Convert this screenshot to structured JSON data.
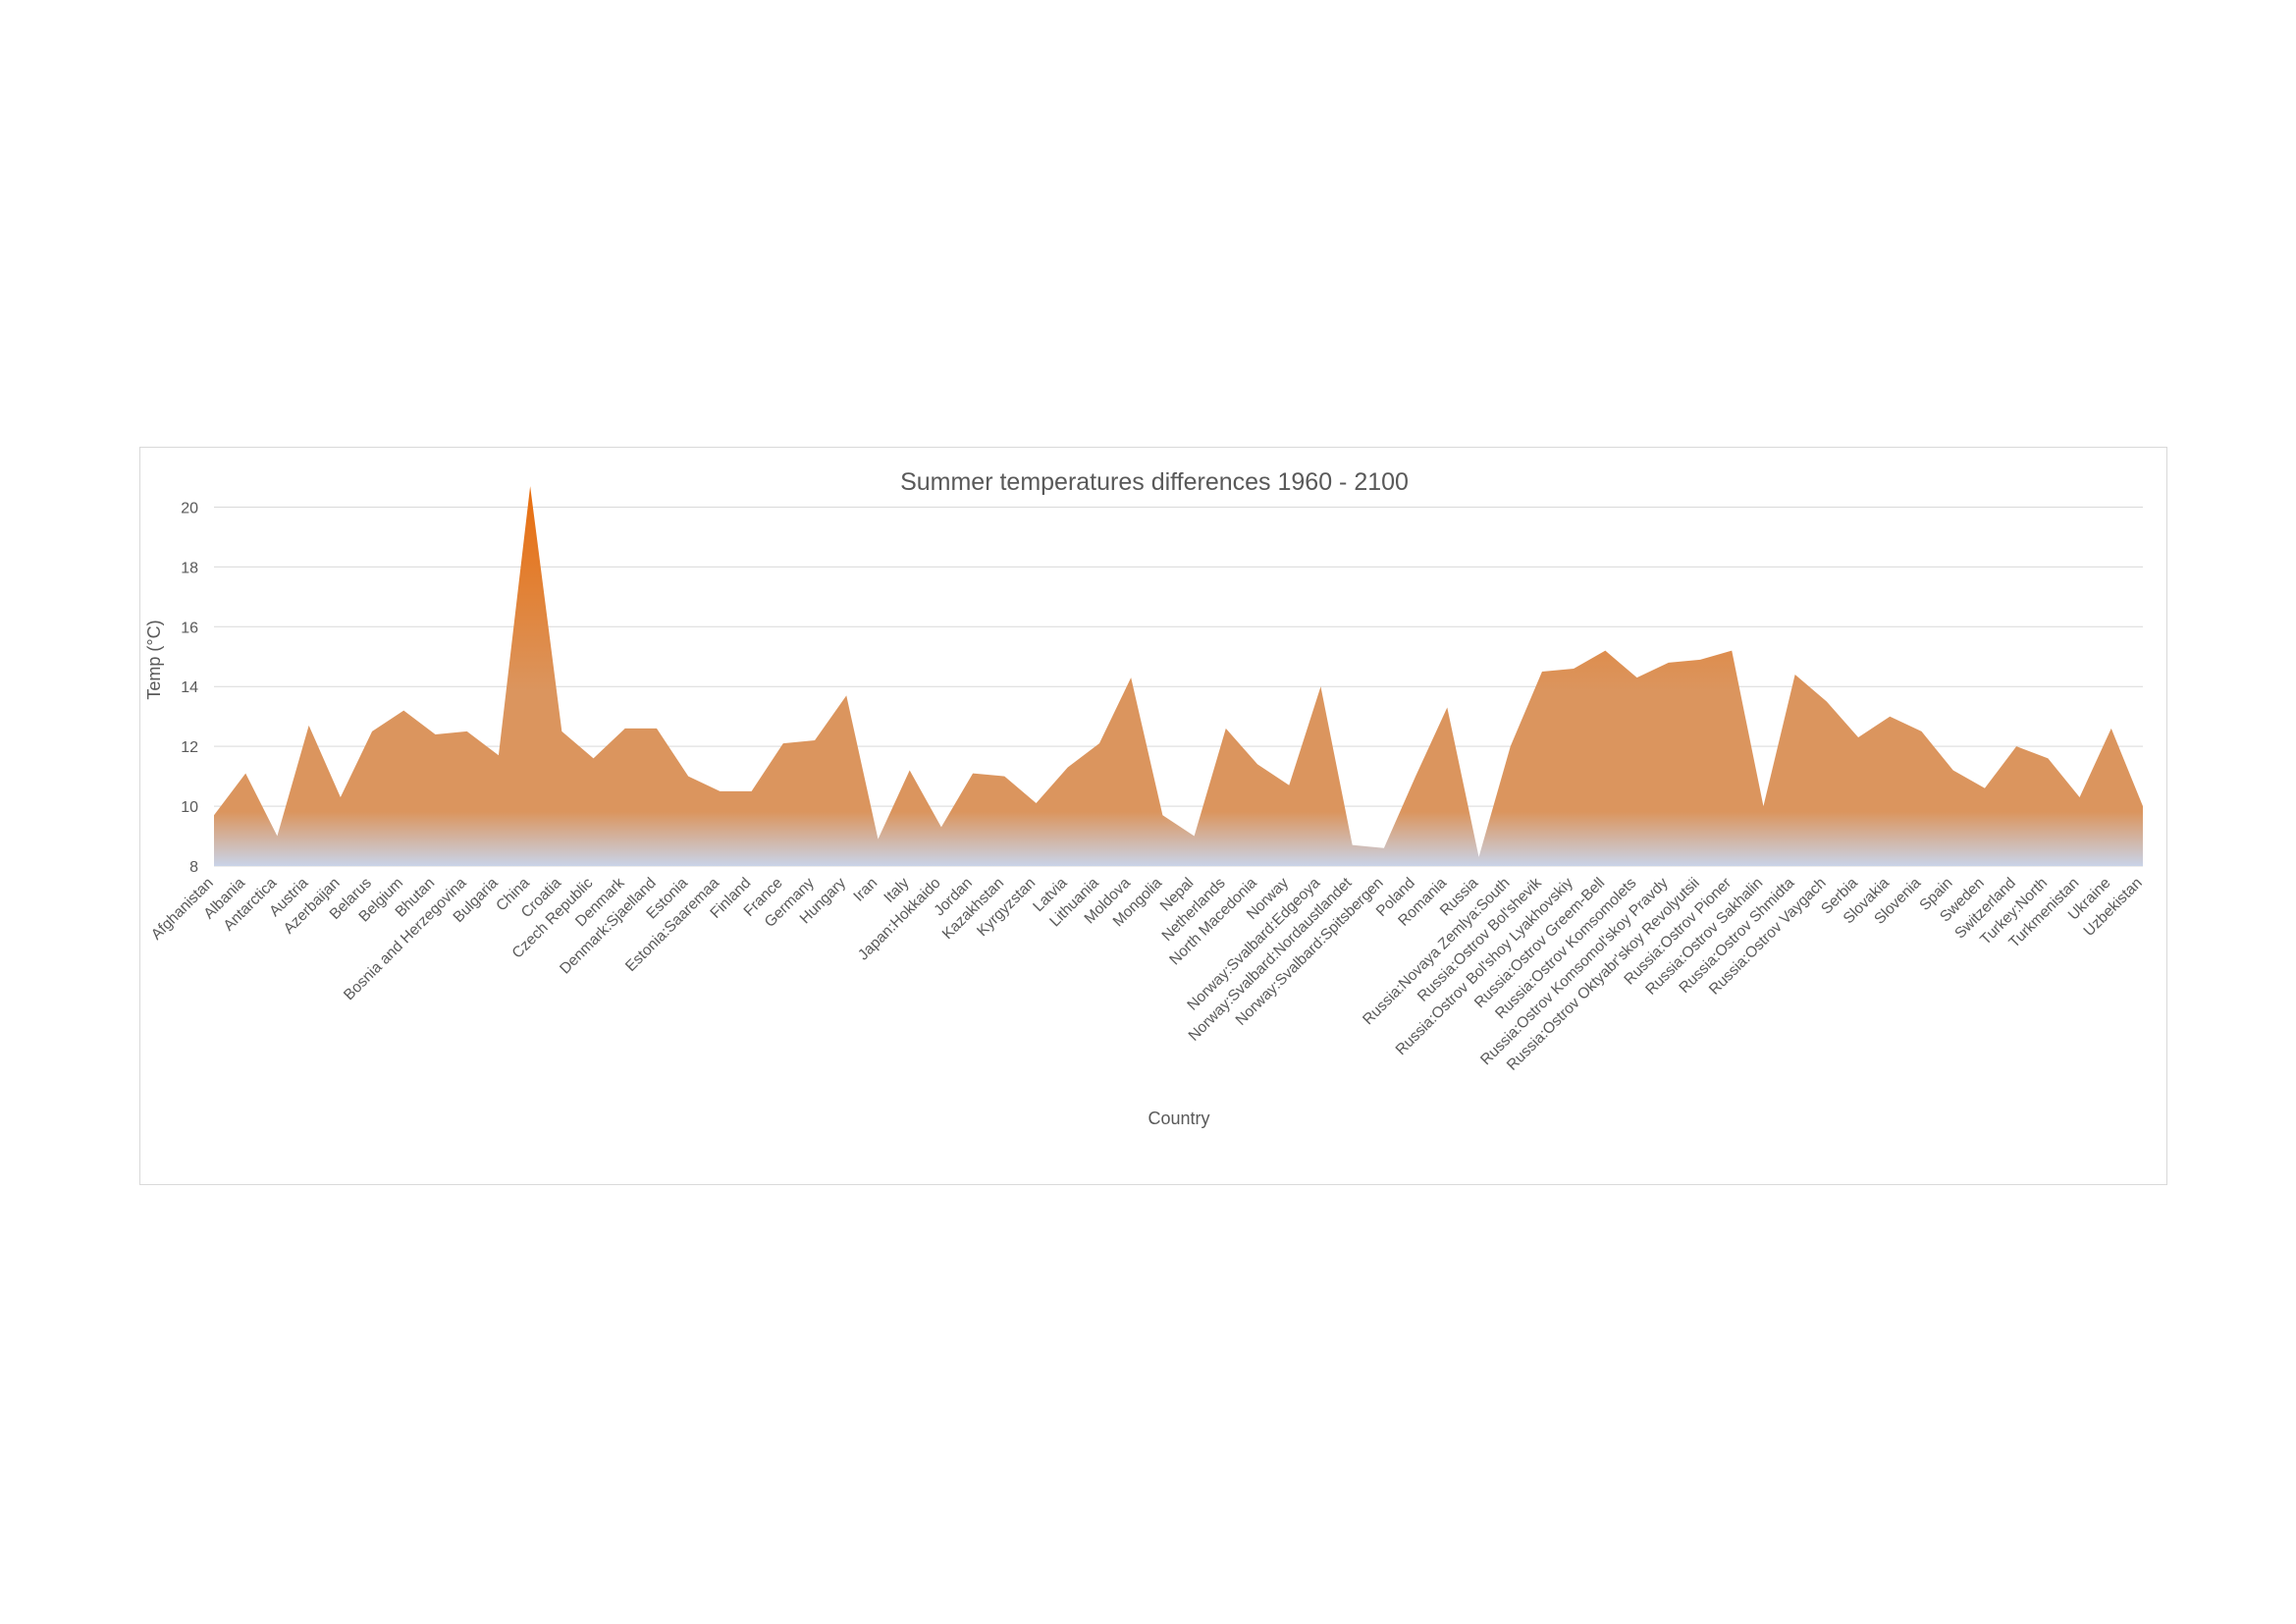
{
  "chart_data": {
    "type": "area",
    "title": "Summer temperatures differences 1960 - 2100",
    "xlabel": "Country",
    "ylabel": "Temp (°C)",
    "ylim": [
      8,
      21
    ],
    "yticks": [
      8,
      10,
      12,
      14,
      16,
      18,
      20
    ],
    "grid": true,
    "legend": "none",
    "colors": {
      "fill_top": "#e96c0a",
      "fill_mid": "#db955e",
      "fill_bottom": "#c9d3e8",
      "grid": "#d9d9d9",
      "text": "#595959"
    },
    "categories": [
      "Afghanistan",
      "Albania",
      "Antarctica",
      "Austria",
      "Azerbaijan",
      "Belarus",
      "Belgium",
      "Bhutan",
      "Bosnia and Herzegovina",
      "Bulgaria",
      "China",
      "Croatia",
      "Czech Republic",
      "Denmark",
      "Denmark:Sjaelland",
      "Estonia",
      "Estonia:Saaremaa",
      "Finland",
      "France",
      "Germany",
      "Hungary",
      "Iran",
      "Italy",
      "Japan:Hokkaido",
      "Jordan",
      "Kazakhstan",
      "Kyrgyzstan",
      "Latvia",
      "Lithuania",
      "Moldova",
      "Mongolia",
      "Nepal",
      "Netherlands",
      "North Macedonia",
      "Norway",
      "Norway:Svalbard:Edgeoya",
      "Norway:Svalbard:Nordaustlandet",
      "Norway:Svalbard:Spitsbergen",
      "Poland",
      "Romania",
      "Russia",
      "Russia:Novaya Zemlya:South",
      "Russia:Ostrov Bol'shevik",
      "Russia:Ostrov Bol'shoy Lyakhovskiy",
      "Russia:Ostrov Greem-Bell",
      "Russia:Ostrov Komsomolets",
      "Russia:Ostrov Komsomol'skoy Pravdy",
      "Russia:Ostrov Oktyabr'skoy Revolyutsii",
      "Russia:Ostrov Pioner",
      "Russia:Ostrov Sakhalin",
      "Russia:Ostrov Shmidta",
      "Russia:Ostrov Vaygach",
      "Serbia",
      "Slovakia",
      "Slovenia",
      "Spain",
      "Sweden",
      "Switzerland",
      "Turkey:North",
      "Turkmenistan",
      "Ukraine",
      "Uzbekistan"
    ],
    "values": [
      9.7,
      11.1,
      9.0,
      12.7,
      10.3,
      12.5,
      13.2,
      12.4,
      12.5,
      11.7,
      20.7,
      12.5,
      11.6,
      12.6,
      12.6,
      11.0,
      10.5,
      10.5,
      12.1,
      12.2,
      13.7,
      8.9,
      11.2,
      9.3,
      11.1,
      11.0,
      10.1,
      11.3,
      12.1,
      14.3,
      9.7,
      9.0,
      12.6,
      11.4,
      10.7,
      14.0,
      8.7,
      8.6,
      11.0,
      13.3,
      8.3,
      12.0,
      14.5,
      14.6,
      15.2,
      14.3,
      14.8,
      14.9,
      15.2,
      10.0,
      14.4,
      13.5,
      12.3,
      13.0,
      12.5,
      11.2,
      10.6,
      12.0,
      11.6,
      10.3,
      12.6,
      10.0
    ]
  }
}
